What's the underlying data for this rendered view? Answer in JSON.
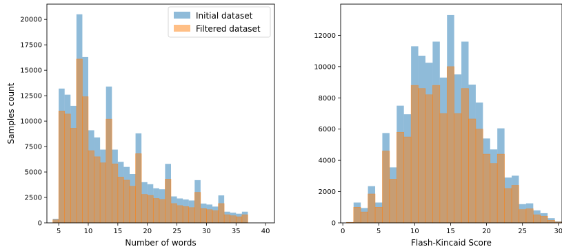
{
  "chart_data": [
    {
      "type": "bar",
      "subtype": "overlaid-histogram",
      "xlabel": "Number of words",
      "ylabel": "Samples count",
      "xlim": [
        3,
        41.5
      ],
      "ylim": [
        0,
        21500
      ],
      "xticks": [
        5,
        10,
        15,
        20,
        25,
        30,
        35,
        40
      ],
      "yticks": [
        0,
        2500,
        5000,
        7500,
        10000,
        12500,
        15000,
        17500,
        20000
      ],
      "bin_width": 1,
      "legend": "top-right",
      "x": [
        4.5,
        5.5,
        6.5,
        7.5,
        8.5,
        9.5,
        10.5,
        11.5,
        12.5,
        13.5,
        14.5,
        15.5,
        16.5,
        17.5,
        18.5,
        19.5,
        20.5,
        21.5,
        22.5,
        23.5,
        24.5,
        25.5,
        26.5,
        27.5,
        28.5,
        29.5,
        30.5,
        31.5,
        32.5,
        33.5,
        34.5,
        35.5,
        36.5,
        37.5,
        38.5,
        39.5
      ],
      "series": [
        {
          "name": "Initial dataset",
          "color": "#1f77b4",
          "values": [
            400,
            13200,
            12600,
            11500,
            20500,
            16300,
            9100,
            8400,
            7200,
            13400,
            7200,
            6000,
            5500,
            4800,
            8800,
            4000,
            3800,
            3400,
            3300,
            5800,
            2600,
            2400,
            2300,
            2200,
            4200,
            1900,
            1800,
            1600,
            2700,
            1100,
            1000,
            900,
            1100,
            0,
            0,
            0
          ]
        },
        {
          "name": "Filtered dataset",
          "color": "#ff7f0e",
          "values": [
            300,
            11000,
            10700,
            9300,
            16100,
            12400,
            7100,
            6500,
            5900,
            10200,
            5800,
            4500,
            4200,
            3600,
            6800,
            2800,
            2700,
            2400,
            2300,
            4300,
            1900,
            1700,
            1600,
            1500,
            3000,
            1400,
            1300,
            1200,
            1900,
            800,
            700,
            600,
            800,
            0,
            0,
            0
          ]
        }
      ]
    },
    {
      "type": "bar",
      "subtype": "overlaid-histogram",
      "xlabel": "Flash-Kincaid Score",
      "ylabel": "",
      "xlim": [
        -0.3,
        30.5
      ],
      "ylim": [
        0,
        14000
      ],
      "xticks": [
        0,
        5,
        10,
        15,
        20,
        25,
        30
      ],
      "yticks": [
        0,
        2000,
        4000,
        6000,
        8000,
        10000,
        12000
      ],
      "bin_width": 1,
      "x": [
        1,
        2,
        3,
        4,
        5,
        6,
        7,
        8,
        9,
        10,
        11,
        12,
        13,
        14,
        15,
        16,
        17,
        18,
        19,
        20,
        21,
        22,
        23,
        24,
        25,
        26,
        27,
        28,
        29,
        30
      ],
      "series": [
        {
          "name": "Initial dataset",
          "color": "#1f77b4",
          "values": [
            50,
            1300,
            950,
            2350,
            1300,
            5750,
            3550,
            7500,
            6950,
            11300,
            10700,
            10250,
            11600,
            9300,
            13300,
            9500,
            11600,
            8850,
            7700,
            5400,
            4700,
            6050,
            2900,
            3020,
            1200,
            1250,
            800,
            620,
            300,
            100
          ]
        },
        {
          "name": "Filtered dataset",
          "color": "#ff7f0e",
          "values": [
            30,
            1000,
            700,
            1850,
            1000,
            4600,
            2800,
            5800,
            5500,
            8800,
            8600,
            8200,
            8800,
            7000,
            10000,
            7000,
            8600,
            6650,
            6000,
            4400,
            3800,
            4400,
            2200,
            2400,
            850,
            900,
            520,
            430,
            160,
            60
          ]
        }
      ]
    }
  ]
}
